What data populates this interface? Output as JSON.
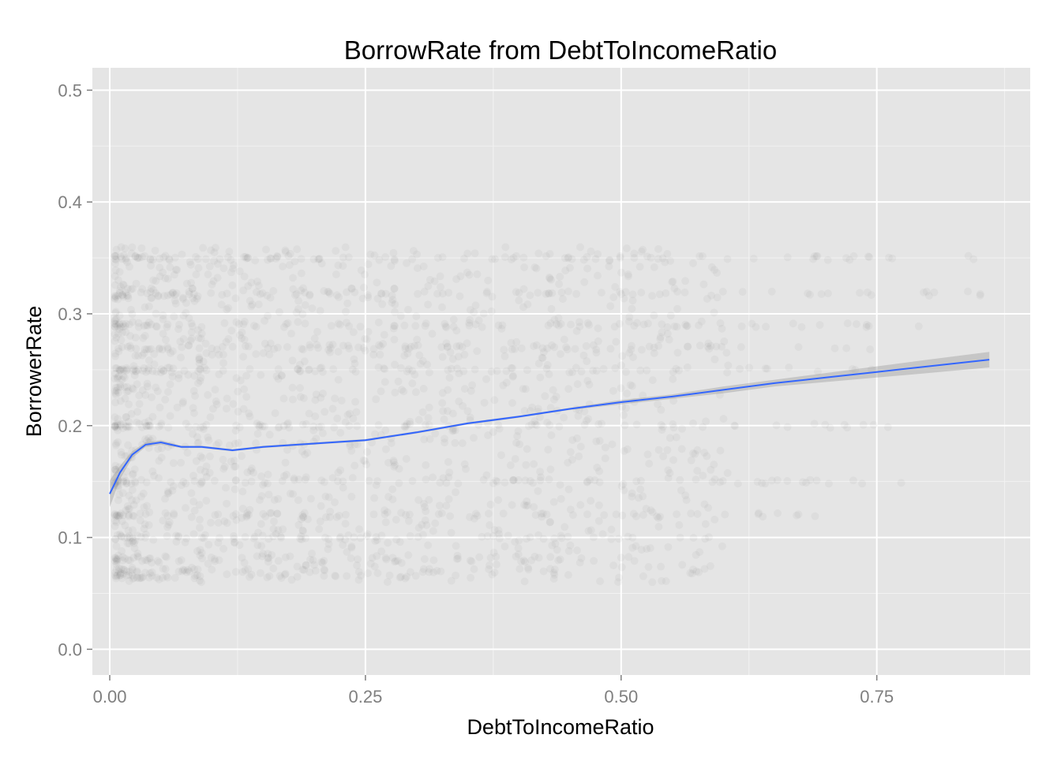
{
  "chart_data": {
    "type": "scatter",
    "title": "BorrowRate from DebtToIncomeRatio",
    "xlabel": "DebtToIncomeRatio",
    "ylabel": "BorrowerRate",
    "xlim": [
      -0.017,
      0.9
    ],
    "ylim": [
      -0.023,
      0.52
    ],
    "x_ticks": [
      0.0,
      0.25,
      0.5,
      0.75
    ],
    "x_tick_labels": [
      "0.00",
      "0.25",
      "0.50",
      "0.75"
    ],
    "y_ticks": [
      0.0,
      0.1,
      0.2,
      0.3,
      0.4,
      0.5
    ],
    "y_tick_labels": [
      "0.0",
      "0.1",
      "0.2",
      "0.3",
      "0.4",
      "0.5"
    ],
    "grid": true,
    "legend": "none",
    "point_color": "#000000",
    "point_alpha": 0.03,
    "smooth_color": "#3366FF",
    "band_color": "#999999",
    "panel_background": "#E5E5E5",
    "density_bands": [
      {
        "y": 0.35,
        "x_from": 0.005,
        "x_to": 0.85
      },
      {
        "y": 0.318,
        "x_from": 0.005,
        "x_to": 0.86
      },
      {
        "y": 0.29,
        "x_from": 0.005,
        "x_to": 0.8
      },
      {
        "y": 0.27,
        "x_from": 0.005,
        "x_to": 0.75
      },
      {
        "y": 0.25,
        "x_from": 0.005,
        "x_to": 0.75
      },
      {
        "y": 0.2,
        "x_from": 0.005,
        "x_to": 0.8
      },
      {
        "y": 0.15,
        "x_from": 0.005,
        "x_to": 0.8
      },
      {
        "y": 0.12,
        "x_from": 0.005,
        "x_to": 0.7
      },
      {
        "y": 0.1,
        "x_from": 0.005,
        "x_to": 0.6
      },
      {
        "y": 0.08,
        "x_from": 0.005,
        "x_to": 0.5
      },
      {
        "y": 0.07,
        "x_from": 0.005,
        "x_to": 0.45
      },
      {
        "y": 0.065,
        "x_from": 0.005,
        "x_to": 0.4
      }
    ],
    "smooth_line": [
      {
        "x": 0.0,
        "y": 0.139,
        "lo": 0.127,
        "hi": 0.151
      },
      {
        "x": 0.01,
        "y": 0.158,
        "lo": 0.152,
        "hi": 0.164
      },
      {
        "x": 0.022,
        "y": 0.174,
        "lo": 0.171,
        "hi": 0.177
      },
      {
        "x": 0.035,
        "y": 0.183,
        "lo": 0.181,
        "hi": 0.185
      },
      {
        "x": 0.05,
        "y": 0.185,
        "lo": 0.183,
        "hi": 0.187
      },
      {
        "x": 0.07,
        "y": 0.181,
        "lo": 0.18,
        "hi": 0.182
      },
      {
        "x": 0.09,
        "y": 0.181,
        "lo": 0.18,
        "hi": 0.182
      },
      {
        "x": 0.12,
        "y": 0.178,
        "lo": 0.177,
        "hi": 0.179
      },
      {
        "x": 0.15,
        "y": 0.181,
        "lo": 0.18,
        "hi": 0.182
      },
      {
        "x": 0.2,
        "y": 0.184,
        "lo": 0.183,
        "hi": 0.185
      },
      {
        "x": 0.25,
        "y": 0.187,
        "lo": 0.186,
        "hi": 0.188
      },
      {
        "x": 0.3,
        "y": 0.194,
        "lo": 0.193,
        "hi": 0.195
      },
      {
        "x": 0.35,
        "y": 0.202,
        "lo": 0.201,
        "hi": 0.203
      },
      {
        "x": 0.4,
        "y": 0.208,
        "lo": 0.207,
        "hi": 0.209
      },
      {
        "x": 0.45,
        "y": 0.215,
        "lo": 0.214,
        "hi": 0.216
      },
      {
        "x": 0.5,
        "y": 0.221,
        "lo": 0.219,
        "hi": 0.223
      },
      {
        "x": 0.55,
        "y": 0.226,
        "lo": 0.224,
        "hi": 0.228
      },
      {
        "x": 0.6,
        "y": 0.232,
        "lo": 0.229,
        "hi": 0.235
      },
      {
        "x": 0.65,
        "y": 0.238,
        "lo": 0.235,
        "hi": 0.241
      },
      {
        "x": 0.7,
        "y": 0.243,
        "lo": 0.239,
        "hi": 0.247
      },
      {
        "x": 0.75,
        "y": 0.248,
        "lo": 0.243,
        "hi": 0.253
      },
      {
        "x": 0.8,
        "y": 0.253,
        "lo": 0.247,
        "hi": 0.259
      },
      {
        "x": 0.86,
        "y": 0.259,
        "lo": 0.252,
        "hi": 0.266
      }
    ]
  }
}
